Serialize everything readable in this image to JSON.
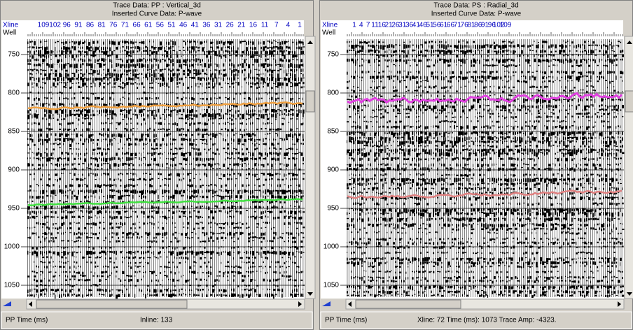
{
  "panels": [
    {
      "title": "Trace Data: PP : Vertical_3d",
      "subtitle": "Inserted Curve Data:  P-wave",
      "axis_labels": [
        "Xline",
        "Well"
      ],
      "xline_ticks": [
        "109",
        "102",
        "96",
        "91",
        "86",
        "81",
        "76",
        "71",
        "66",
        "61",
        "56",
        "51",
        "46",
        "41",
        "36",
        "31",
        "26",
        "21",
        "16",
        "11",
        "7",
        "4",
        "1"
      ],
      "time_ticks": [
        "750",
        "800",
        "850",
        "900",
        "950",
        "1000",
        "1050"
      ],
      "status": [
        "PP Time (ms)",
        "Inline: 133"
      ]
    },
    {
      "title": "Trace Data: PS : Radial_3d",
      "subtitle": "Inserted Curve Data:  P-wave",
      "axis_labels": [
        "Xline",
        "Well"
      ],
      "xline_ticks": [
        "1",
        "4",
        "7",
        "11",
        "16",
        "21",
        "26",
        "31",
        "36",
        "41",
        "46",
        "51",
        "56",
        "61",
        "66",
        "71",
        "76",
        "81",
        "86",
        "91",
        "96",
        "102",
        "109"
      ],
      "time_ticks": [
        "750",
        "800",
        "850",
        "900",
        "950",
        "1000",
        "1050"
      ],
      "status": [
        "PP Time (ms)",
        "Xline: 72  Time (ms): 1073  Trace Amp: -4323."
      ]
    }
  ]
}
